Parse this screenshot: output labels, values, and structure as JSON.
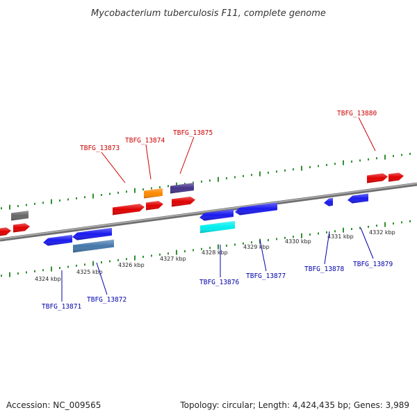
{
  "title": "Mycobacterium tuberculosis F11, complete genome",
  "footer": {
    "accession": "Accession: NC_009565",
    "summary": "Topology: circular; Length: 4,424,435 bp; Genes: 3,989"
  },
  "colors": {
    "backbone": "#8a8a8a",
    "forward_ticks": "#2f8f2f",
    "reverse_ticks": "#2f8f2f",
    "forward_label": "#cc0000",
    "reverse_label": "#0000aa"
  },
  "scale_labels": [
    {
      "kbp": 4324,
      "text": "4324 kbp"
    },
    {
      "kbp": 4325,
      "text": "4325 kbp"
    },
    {
      "kbp": 4326,
      "text": "4326 kbp"
    },
    {
      "kbp": 4327,
      "text": "4327 kbp"
    },
    {
      "kbp": 4328,
      "text": "4328 kbp"
    },
    {
      "kbp": 4329,
      "text": "4329 kbp"
    },
    {
      "kbp": 4330,
      "text": "4330 kbp"
    },
    {
      "kbp": 4331,
      "text": "4331 kbp"
    },
    {
      "kbp": 4332,
      "text": "4332 kbp"
    }
  ],
  "forward_labels": [
    {
      "text": "TBFG_13873"
    },
    {
      "text": "TBFG_13874"
    },
    {
      "text": "TBFG_13875"
    },
    {
      "text": "TBFG_13880"
    }
  ],
  "reverse_labels": [
    {
      "text": "TBFG_13871"
    },
    {
      "text": "TBFG_13872"
    },
    {
      "text": "TBFG_13876"
    },
    {
      "text": "TBFG_13877"
    },
    {
      "text": "TBFG_13878"
    },
    {
      "text": "TBFG_13879"
    }
  ]
}
